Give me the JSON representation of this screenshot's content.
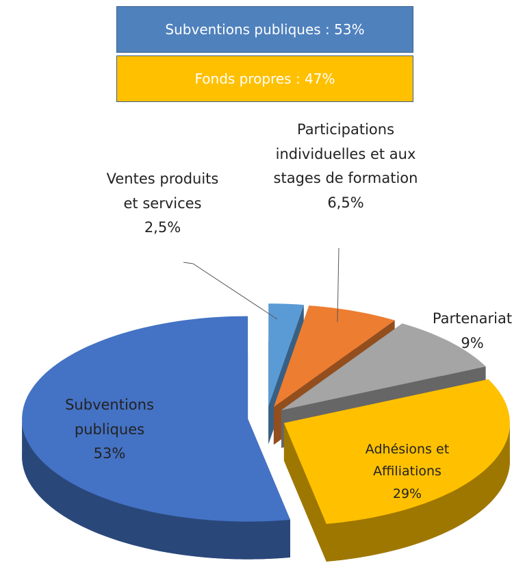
{
  "chart_data": {
    "type": "pie3d",
    "summary": [
      {
        "label": "Subventions publiques : 53%",
        "color": "#4f81bd"
      },
      {
        "label": "Fonds propres : 47%",
        "color": "#ffc000"
      }
    ],
    "categories": [
      "Ventes produits et services",
      "Participations individuelles et aux stages de formation",
      "Partenariat",
      "Adhésions et Affiliations",
      "Subventions publiques"
    ],
    "values": [
      2.5,
      6.5,
      9,
      29,
      53
    ],
    "value_labels": [
      "2,5%",
      "6,5%",
      "9%",
      "29%",
      "53%"
    ],
    "colors": [
      "#5b9bd5",
      "#ed7d31",
      "#a5a5a5",
      "#ffc000",
      "#4472c4"
    ]
  }
}
